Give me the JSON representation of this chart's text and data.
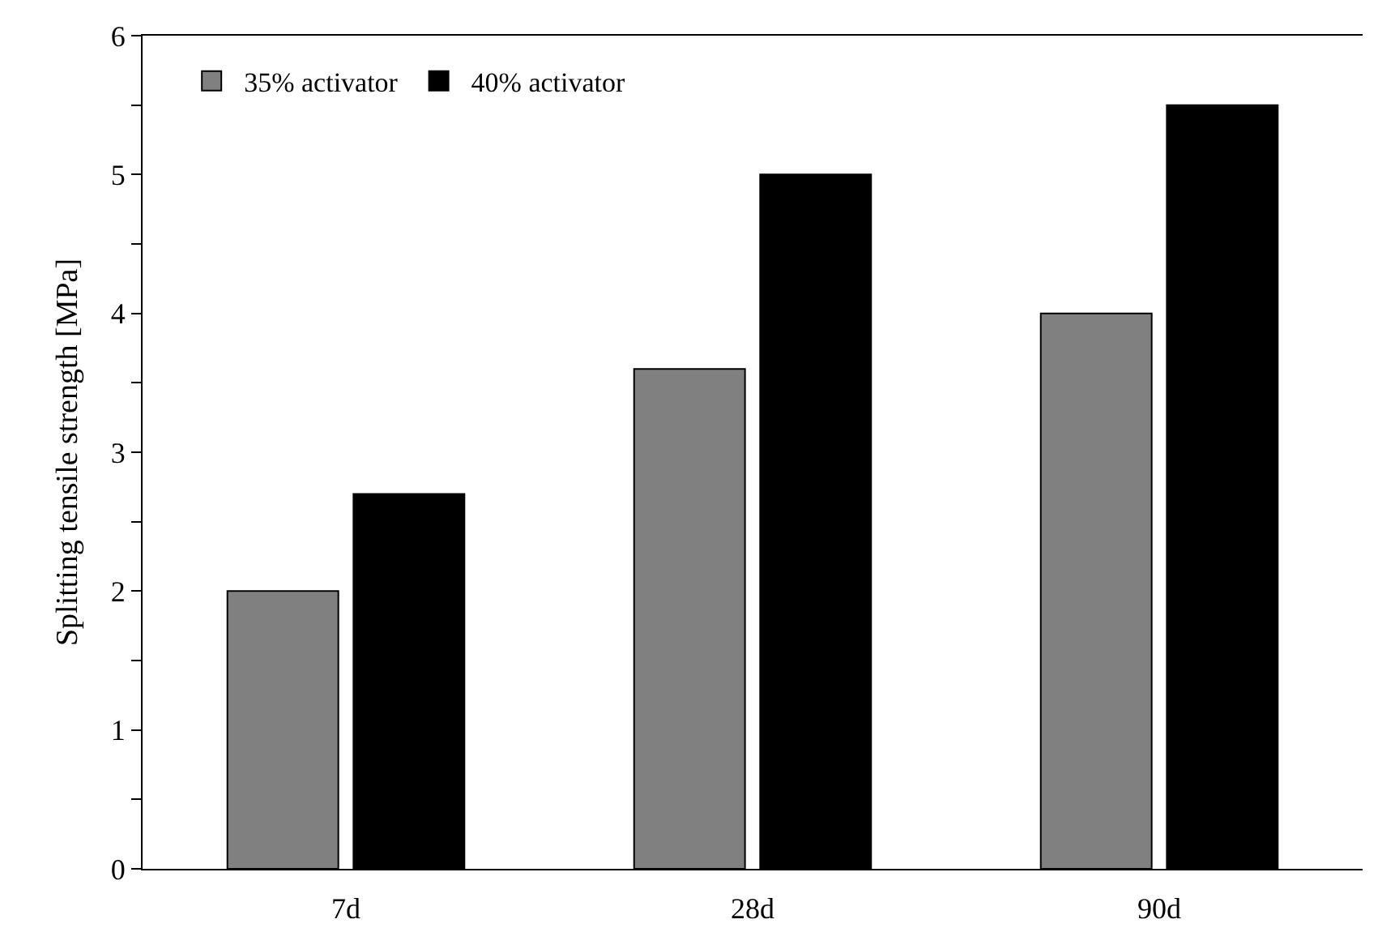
{
  "chart_data": {
    "type": "bar",
    "ylabel": "Splitting tensile strength [MPa]",
    "categories": [
      "7d",
      "28d",
      "90d"
    ],
    "series": [
      {
        "name": "35% activator",
        "color": "#808080",
        "values": [
          2.0,
          3.6,
          4.0
        ]
      },
      {
        "name": "40% activator",
        "color": "#000000",
        "values": [
          2.7,
          5.0,
          5.5
        ]
      }
    ],
    "ylim": [
      0,
      6
    ],
    "yticks": [
      0,
      {
        "value": 0.5,
        "label": null
      },
      1,
      {
        "value": 1.5,
        "label": null
      },
      2,
      {
        "value": 2.5,
        "label": null
      },
      3,
      {
        "value": 3.5,
        "label": null
      },
      4,
      {
        "value": 4.5,
        "label": null
      },
      5,
      {
        "value": 5.5,
        "label": null
      },
      6
    ],
    "legend": "top left"
  }
}
